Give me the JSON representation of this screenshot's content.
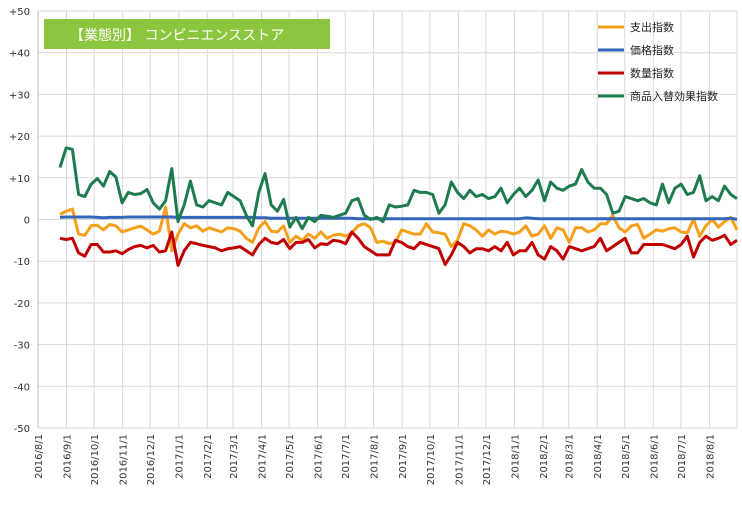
{
  "chart_data": {
    "type": "line",
    "title": "【業態別】 コンビニエンスストア",
    "title_bg_color": "#8cc63f",
    "ylim": [
      -50,
      50
    ],
    "yticks": [
      "+50",
      "+40",
      "+30",
      "+20",
      "+10",
      "0",
      "-10",
      "-20",
      "-30",
      "-40",
      "-50"
    ],
    "ytick_values": [
      50,
      40,
      30,
      20,
      10,
      0,
      -10,
      -20,
      -30,
      -40,
      -50
    ],
    "xlim": [
      "2016-08-01",
      "2018-08-31"
    ],
    "xticks": [
      "2016/8/1",
      "2016/9/1",
      "2016/10/1",
      "2016/11/1",
      "2016/12/1",
      "2017/1/1",
      "2017/2/1",
      "2017/3/1",
      "2017/4/1",
      "2017/5/1",
      "2017/6/1",
      "2017/7/1",
      "2017/8/1",
      "2017/9/1",
      "2017/10/1",
      "2017/11/1",
      "2017/12/1",
      "2018/1/1",
      "2018/2/1",
      "2018/3/1",
      "2018/4/1",
      "2018/5/1",
      "2018/6/1",
      "2018/7/1",
      "2018/8/1"
    ],
    "grid": true,
    "legend_position": "top-right",
    "series": [
      {
        "name": "支出指数",
        "color": "#f5a01a",
        "values": [
          1.2,
          2.0,
          2.5,
          -3.5,
          -3.8,
          -1.5,
          -1.4,
          -2.5,
          -1.2,
          -1.5,
          -3.0,
          -2.5,
          -2.0,
          -1.6,
          -2.5,
          -3.5,
          -2.8,
          3.0,
          -7.5,
          -3.5,
          -1.0,
          -2.0,
          -1.5,
          -2.8,
          -2.0,
          -2.5,
          -3.0,
          -2.0,
          -2.2,
          -2.8,
          -4.5,
          -5.5,
          -2.0,
          -0.5,
          -2.8,
          -3.0,
          -1.5,
          -5.5,
          -4.0,
          -5.0,
          -3.5,
          -4.5,
          -3.0,
          -4.5,
          -3.8,
          -3.5,
          -4.0,
          -3.2,
          -1.5,
          -1.0,
          -2.0,
          -5.5,
          -5.2,
          -5.8,
          -5.5,
          -2.5,
          -3.0,
          -3.5,
          -3.5,
          -1.0,
          -3.0,
          -3.2,
          -3.5,
          -6.5,
          -5.0,
          -1.0,
          -1.5,
          -2.5,
          -4.0,
          -2.5,
          -3.5,
          -2.8,
          -3.0,
          -3.5,
          -3.0,
          -1.5,
          -4.0,
          -3.5,
          -1.5,
          -4.5,
          -2.0,
          -2.5,
          -5.5,
          -2.0,
          -2.0,
          -3.0,
          -2.5,
          -1.0,
          -1.0,
          1.0,
          -2.0,
          -3.0,
          -1.5,
          -1.2,
          -4.5,
          -3.5,
          -2.5,
          -2.8,
          -2.2,
          -2.0,
          -3.0,
          -3.2,
          0.0,
          -4.0,
          -1.5,
          0.0,
          -1.8,
          -0.5,
          0.5,
          -2.5
        ]
      },
      {
        "name": "価格指数",
        "color": "#3366bb",
        "values": [
          0.5,
          0.6,
          0.6,
          0.6,
          0.6,
          0.6,
          0.5,
          0.4,
          0.5,
          0.5,
          0.5,
          0.6,
          0.6,
          0.6,
          0.6,
          0.6,
          0.6,
          0.6,
          0.6,
          0.5,
          0.5,
          0.5,
          0.5,
          0.5,
          0.5,
          0.5,
          0.5,
          0.5,
          0.5,
          0.5,
          0.5,
          0.5,
          0.4,
          0.4,
          0.3,
          0.3,
          0.3,
          0.3,
          0.3,
          0.3,
          0.3,
          0.3,
          0.3,
          0.3,
          0.3,
          0.3,
          0.3,
          0.3,
          0.2,
          0.2,
          0.2,
          0.2,
          0.2,
          0.2,
          0.2,
          0.2,
          0.2,
          0.2,
          0.2,
          0.2,
          0.2,
          0.2,
          0.2,
          0.2,
          0.2,
          0.2,
          0.2,
          0.2,
          0.2,
          0.2,
          0.2,
          0.2,
          0.2,
          0.2,
          0.2,
          0.4,
          0.3,
          0.2,
          0.2,
          0.2,
          0.2,
          0.2,
          0.2,
          0.2,
          0.2,
          0.2,
          0.2,
          0.2,
          0.2,
          0.2,
          0.2,
          0.2,
          0.2,
          0.2,
          0.2,
          0.2,
          0.2,
          0.2,
          0.2,
          0.2,
          0.2,
          0.2,
          0.2,
          0.2,
          0.2,
          0.2,
          0.2,
          0.2,
          0.3,
          0.0
        ]
      },
      {
        "name": "数量指数",
        "color": "#c00000",
        "values": [
          -4.5,
          -4.8,
          -4.5,
          -8.0,
          -8.8,
          -6.0,
          -6.0,
          -7.8,
          -7.8,
          -7.5,
          -8.2,
          -7.2,
          -6.5,
          -6.2,
          -6.8,
          -6.2,
          -7.8,
          -7.5,
          -3.0,
          -11.0,
          -7.5,
          -5.5,
          -5.8,
          -6.2,
          -6.5,
          -6.8,
          -7.5,
          -7.0,
          -6.8,
          -6.5,
          -7.5,
          -8.5,
          -6.0,
          -4.5,
          -5.5,
          -5.8,
          -4.8,
          -7.0,
          -5.5,
          -5.5,
          -4.8,
          -6.8,
          -5.8,
          -6.0,
          -5.0,
          -5.2,
          -5.8,
          -3.0,
          -4.5,
          -6.5,
          -7.5,
          -8.5,
          -8.5,
          -8.5,
          -5.0,
          -5.5,
          -6.5,
          -7.0,
          -5.5,
          -6.0,
          -6.5,
          -7.0,
          -10.8,
          -8.5,
          -5.5,
          -6.5,
          -8.0,
          -7.0,
          -7.0,
          -7.5,
          -6.5,
          -7.5,
          -5.5,
          -8.5,
          -7.5,
          -7.5,
          -5.5,
          -8.5,
          -9.5,
          -6.5,
          -7.5,
          -9.5,
          -6.5,
          -7.0,
          -7.5,
          -7.0,
          -6.5,
          -4.5,
          -7.5,
          -6.5,
          -5.5,
          -4.5,
          -8.0,
          -8.0,
          -6.0,
          -6.0,
          -6.0,
          -6.0,
          -6.5,
          -7.0,
          -6.0,
          -4.0,
          -9.0,
          -5.5,
          -4.0,
          -5.0,
          -4.5,
          -3.8,
          -6.0,
          -5.0
        ]
      },
      {
        "name": "商品入替効果指数",
        "color": "#1e7b4f",
        "values": [
          12.5,
          17.2,
          16.8,
          6.0,
          5.5,
          8.5,
          9.8,
          8.0,
          11.5,
          10.2,
          4.0,
          6.5,
          6.0,
          6.2,
          7.2,
          4.0,
          2.5,
          4.5,
          12.2,
          -0.5,
          3.5,
          9.2,
          3.5,
          3.0,
          4.5,
          4.0,
          3.5,
          6.5,
          5.5,
          4.5,
          1.0,
          -1.5,
          6.5,
          11.0,
          3.5,
          2.0,
          4.8,
          -1.8,
          0.5,
          -2.2,
          0.5,
          -0.5,
          1.0,
          0.8,
          0.5,
          1.0,
          1.5,
          4.5,
          5.0,
          1.0,
          0.0,
          0.5,
          -0.5,
          3.5,
          3.0,
          3.2,
          3.5,
          7.0,
          6.5,
          6.5,
          6.0,
          1.5,
          3.5,
          9.0,
          6.5,
          5.0,
          7.0,
          5.5,
          6.0,
          5.0,
          5.5,
          7.5,
          4.0,
          6.0,
          7.5,
          5.5,
          7.0,
          9.5,
          4.5,
          9.0,
          7.5,
          7.0,
          8.0,
          8.5,
          12.0,
          9.0,
          7.5,
          7.5,
          6.0,
          1.5,
          2.0,
          5.5,
          5.0,
          4.5,
          5.0,
          4.0,
          3.5,
          8.5,
          4.0,
          7.5,
          8.5,
          6.0,
          6.5,
          10.5,
          4.5,
          5.5,
          4.5,
          8.0,
          6.0,
          5.0
        ]
      }
    ]
  }
}
